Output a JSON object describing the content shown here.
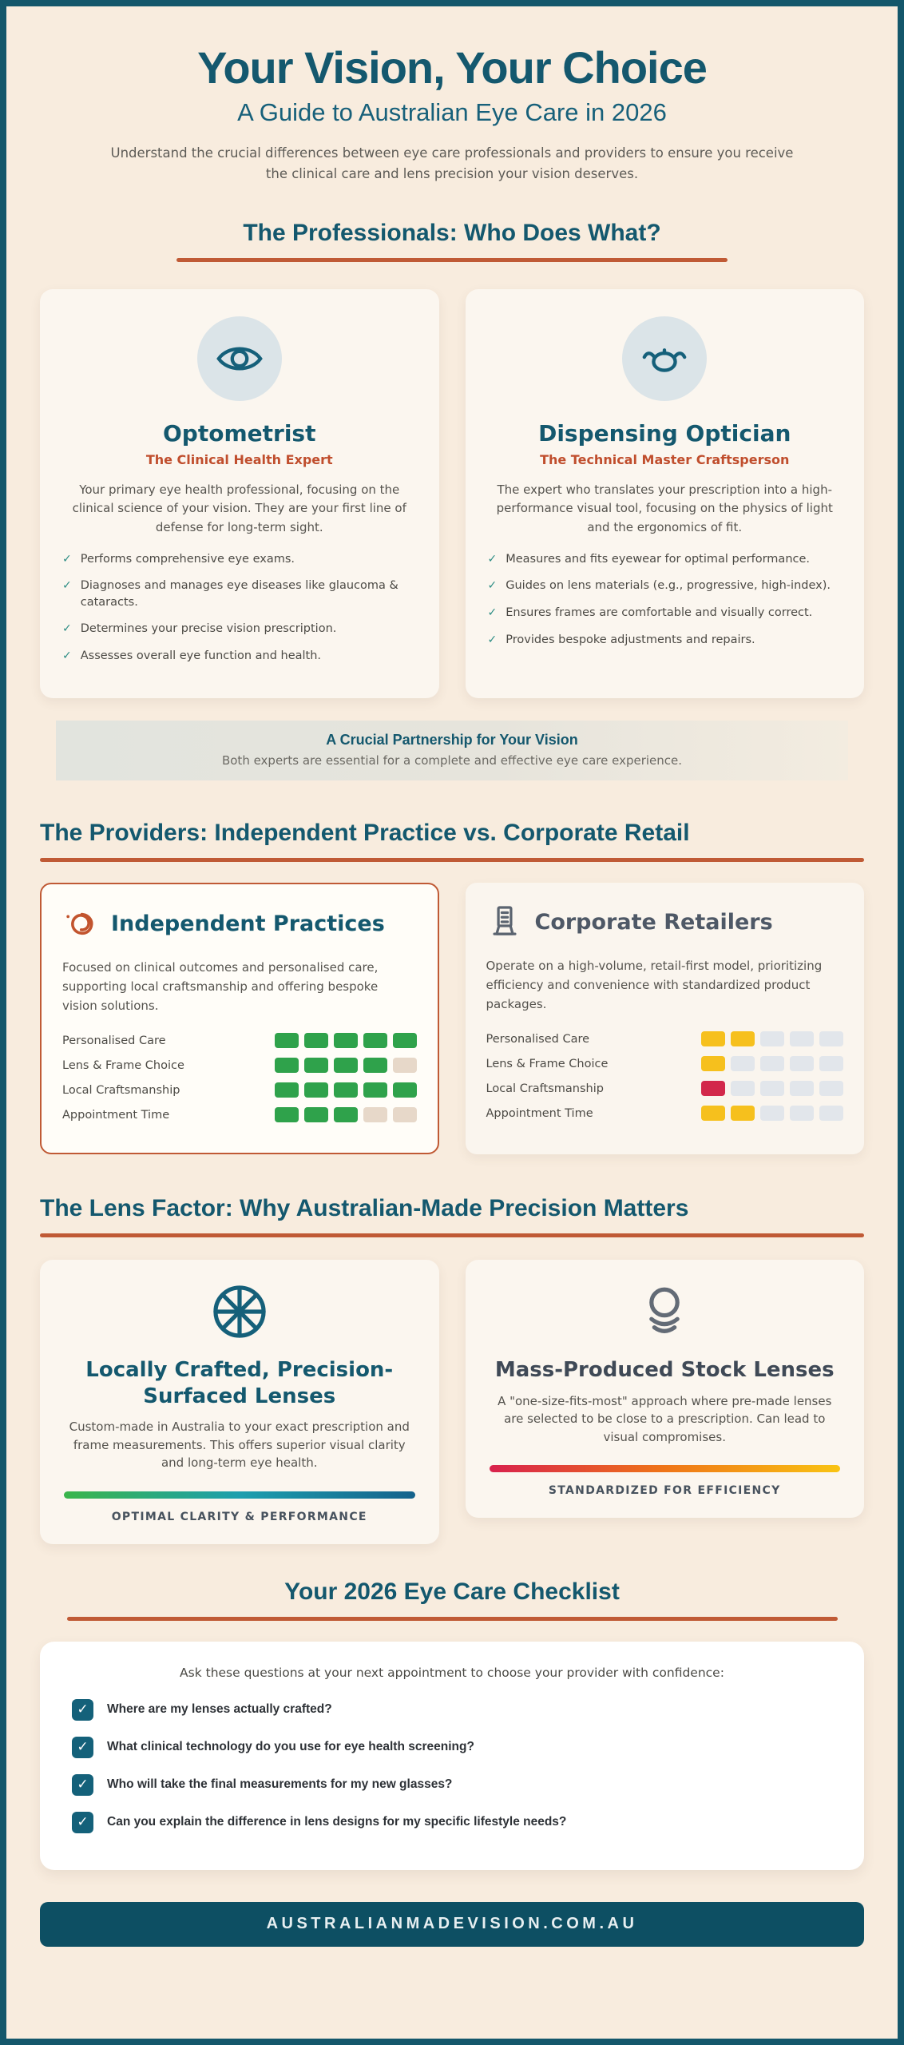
{
  "colors": {
    "page_background": "#f8ecde",
    "page_border_teal": "#14576b",
    "heading_teal": "#14586e",
    "accent_orange": "#c05a35",
    "subtitle_orange": "#c04e2d",
    "body_gray": "#55534e",
    "green_rating": "#2fa24b",
    "yellow_rating": "#f6c01d",
    "red_rating": "#d2284b",
    "empty_warm": "#e7d8c9",
    "empty_cool": "#e2e6eb",
    "footer_background": "#0d4f63"
  },
  "header": {
    "title": "Your Vision, Your Choice",
    "subtitle": "A Guide to Australian Eye Care in 2026",
    "intro": "Understand the crucial differences between eye care professionals and providers to ensure you receive the clinical care and lens precision your vision deserves."
  },
  "professionals": {
    "heading": "The Professionals: Who Does What?",
    "cards": [
      {
        "icon": "eye-icon",
        "title": "Optometrist",
        "subtitle": "The Clinical Health Expert",
        "description": "Your primary eye health professional, focusing on the clinical science of your vision. They are your first line of defense for long-term sight.",
        "points": [
          "Performs comprehensive eye exams.",
          "Diagnoses and manages eye diseases like glaucoma & cataracts.",
          "Determines your precise vision prescription.",
          "Assesses overall eye function and health."
        ]
      },
      {
        "icon": "glasses-icon",
        "title": "Dispensing Optician",
        "subtitle": "The Technical Master Craftsperson",
        "description": "The expert who translates your prescription into a high-performance visual tool, focusing on the physics of light and the ergonomics of fit.",
        "points": [
          "Measures and fits eyewear for optimal performance.",
          "Guides on lens materials (e.g., progressive, high-index).",
          "Ensures frames are comfortable and visually correct.",
          "Provides bespoke adjustments and repairs."
        ]
      }
    ],
    "partnership": {
      "title": "A Crucial Partnership for Your Vision",
      "text": "Both experts are essential for a complete and effective eye care experience."
    }
  },
  "providers": {
    "heading": "The Providers: Independent Practice vs. Corporate Retail",
    "cards": [
      {
        "icon": "spiral-icon",
        "title": "Independent Practices",
        "description": "Focused on clinical outcomes and personalised care, supporting local craftsmanship and offering bespoke vision solutions.",
        "ratings": [
          {
            "label": "Personalised Care",
            "value": 5,
            "max": 5,
            "on": "#2fa24b",
            "off": "#e7d8c9"
          },
          {
            "label": "Lens & Frame Choice",
            "value": 4,
            "max": 5,
            "on": "#2fa24b",
            "off": "#e7d8c9"
          },
          {
            "label": "Local Craftsmanship",
            "value": 5,
            "max": 5,
            "on": "#2fa24b",
            "off": "#e7d8c9"
          },
          {
            "label": "Appointment Time",
            "value": 3,
            "max": 5,
            "on": "#2fa24b",
            "off": "#e7d8c9"
          }
        ]
      },
      {
        "icon": "building-icon",
        "title": "Corporate Retailers",
        "description": "Operate on a high-volume, retail-first model, prioritizing efficiency and convenience with standardized product packages.",
        "ratings": [
          {
            "label": "Personalised Care",
            "value": 2,
            "max": 5,
            "on": "#f6c01d",
            "off": "#e2e6eb"
          },
          {
            "label": "Lens & Frame Choice",
            "value": 1,
            "max": 5,
            "on": "#f6c01d",
            "off": "#e2e6eb"
          },
          {
            "label": "Local Craftsmanship",
            "value": 1,
            "max": 5,
            "on": "#d2284b",
            "off": "#e2e6eb"
          },
          {
            "label": "Appointment Time",
            "value": 2,
            "max": 5,
            "on": "#f6c01d",
            "off": "#e2e6eb"
          }
        ]
      }
    ]
  },
  "lens_factor": {
    "heading": "The Lens Factor: Why Australian-Made Precision Matters",
    "cards": [
      {
        "icon": "lens-wheel-icon",
        "title": "Locally Crafted, Precision-Surfaced Lenses",
        "description": "Custom-made in Australia to your exact prescription and frame measurements. This offers superior visual clarity and long-term eye health.",
        "bar_colors": [
          "#3ab54a",
          "#1d9fae",
          "#15628c"
        ],
        "caption": "OPTIMAL CLARITY & PERFORMANCE"
      },
      {
        "icon": "stacked-lenses-icon",
        "title": "Mass-Produced Stock Lenses",
        "description": "A \"one-size-fits-most\" approach where pre-made lenses are selected to be close to a prescription. Can lead to visual compromises.",
        "bar_colors": [
          "#d8214d",
          "#ef7518",
          "#f9c413"
        ],
        "caption": "STANDARDIZED FOR EFFICIENCY"
      }
    ]
  },
  "checklist": {
    "heading": "Your 2026 Eye Care Checklist",
    "intro": "Ask these questions at your next appointment to choose your provider with confidence:",
    "items": [
      "Where are my lenses actually crafted?",
      "What clinical technology do you use for eye health screening?",
      "Who will take the final measurements for my new glasses?",
      "Can you explain the difference in lens designs for my specific lifestyle needs?"
    ]
  },
  "footer": {
    "url": "AUSTRALIANMADEVISION.COM.AU"
  }
}
